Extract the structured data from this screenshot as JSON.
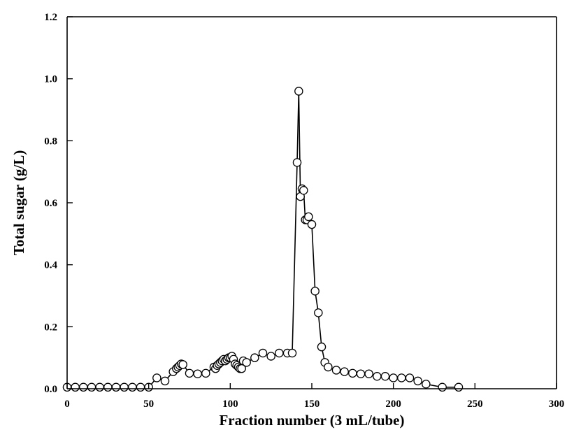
{
  "chart_data": {
    "type": "line",
    "title": "",
    "xlabel": "Fraction number (3 mL/tube)",
    "ylabel": "Total sugar (g/L)",
    "xlim": [
      0,
      300
    ],
    "ylim": [
      0,
      1.2
    ],
    "xticks": [
      0,
      50,
      100,
      150,
      200,
      250,
      300
    ],
    "yticks": [
      0.0,
      0.2,
      0.4,
      0.6,
      0.8,
      1.0,
      1.2
    ],
    "xtick_labels": [
      "0",
      "50",
      "100",
      "150",
      "200",
      "250",
      "300"
    ],
    "ytick_labels": [
      "0.0",
      "0.2",
      "0.4",
      "0.6",
      "0.8",
      "1.0",
      "1.2"
    ],
    "grid": false,
    "marker": "open-circle",
    "series": [
      {
        "x": [
          0,
          5,
          10,
          15,
          20,
          25,
          30,
          35,
          40,
          45,
          50,
          55,
          60,
          65,
          67,
          68,
          69,
          70,
          71,
          75,
          80,
          85,
          90,
          91,
          92,
          93,
          94,
          95,
          96,
          97,
          98,
          99,
          100,
          101,
          102,
          103,
          104,
          105,
          106,
          107,
          108,
          110,
          115,
          120,
          125,
          130,
          135,
          138,
          141,
          142,
          143,
          144,
          145,
          146,
          147,
          148,
          150,
          152,
          154,
          156,
          158,
          160,
          165,
          170,
          175,
          180,
          185,
          190,
          195,
          200,
          205,
          210,
          215,
          220,
          230,
          240
        ],
        "y": [
          0.005,
          0.005,
          0.005,
          0.005,
          0.005,
          0.005,
          0.005,
          0.005,
          0.005,
          0.005,
          0.005,
          0.035,
          0.025,
          0.055,
          0.065,
          0.07,
          0.075,
          0.08,
          0.078,
          0.05,
          0.048,
          0.05,
          0.07,
          0.065,
          0.075,
          0.08,
          0.085,
          0.09,
          0.095,
          0.09,
          0.095,
          0.1,
          0.1,
          0.105,
          0.095,
          0.08,
          0.075,
          0.07,
          0.065,
          0.065,
          0.09,
          0.085,
          0.1,
          0.115,
          0.105,
          0.115,
          0.115,
          0.115,
          0.73,
          0.96,
          0.62,
          0.645,
          0.64,
          0.545,
          0.545,
          0.555,
          0.53,
          0.315,
          0.245,
          0.135,
          0.085,
          0.07,
          0.06,
          0.055,
          0.05,
          0.048,
          0.048,
          0.04,
          0.04,
          0.035,
          0.035,
          0.035,
          0.025,
          0.015,
          0.005,
          0.005
        ]
      }
    ]
  }
}
